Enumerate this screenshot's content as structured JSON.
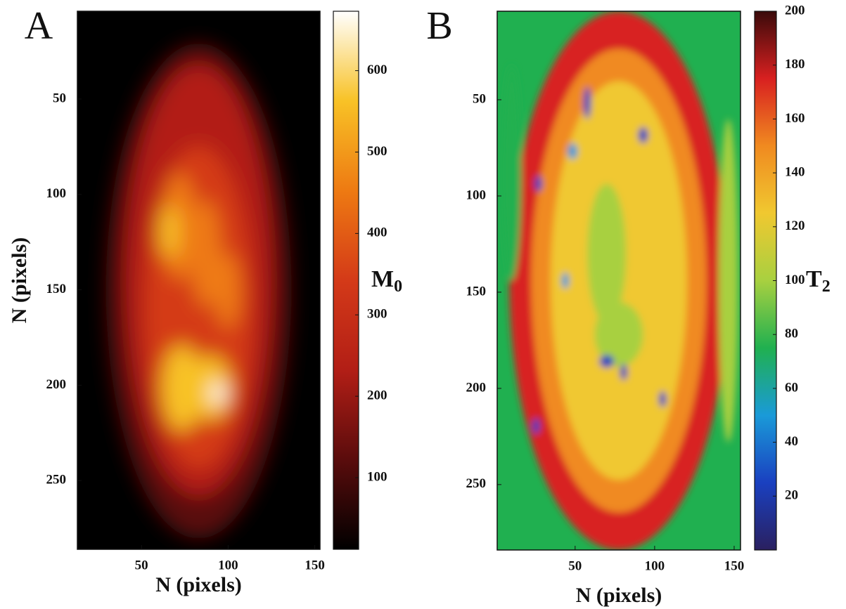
{
  "chart_data": [
    {
      "type": "heatmap",
      "panel_label": "A",
      "xlabel": "N (pixels)",
      "ylabel": "N (pixels)",
      "xlim": [
        13,
        153
      ],
      "xticks": [
        50,
        100,
        150
      ],
      "ylim": [
        4,
        286
      ],
      "yticks": [
        50,
        100,
        150,
        200,
        250
      ],
      "yaxis_reversed": true,
      "clim": [
        12,
        673
      ],
      "cticks": [
        100,
        200,
        300,
        400,
        500,
        600
      ],
      "colorbar_label": {
        "text": "M",
        "sub": "0"
      },
      "colormap": [
        "#000000",
        "#5a0c0c",
        "#b21e16",
        "#d43a18",
        "#ee7a12",
        "#f8c226",
        "#ffffff"
      ]
    },
    {
      "type": "heatmap",
      "panel_label": "B",
      "xlabel": "N (pixels)",
      "xlim": [
        1,
        154
      ],
      "xticks": [
        50,
        100,
        150
      ],
      "ylim": [
        4,
        284
      ],
      "yticks": [
        50,
        100,
        150,
        200,
        250
      ],
      "yaxis_reversed": true,
      "clim": [
        0,
        200
      ],
      "cticks": [
        20,
        40,
        60,
        80,
        100,
        120,
        140,
        160,
        180,
        200
      ],
      "colorbar_label": {
        "text": "T",
        "sub": "2"
      },
      "colormap": [
        "#2a2060",
        "#1a40c0",
        "#1a9ad8",
        "#20b050",
        "#a8d040",
        "#f0c830",
        "#f08a20",
        "#d82020",
        "#3a0a0a"
      ]
    }
  ]
}
